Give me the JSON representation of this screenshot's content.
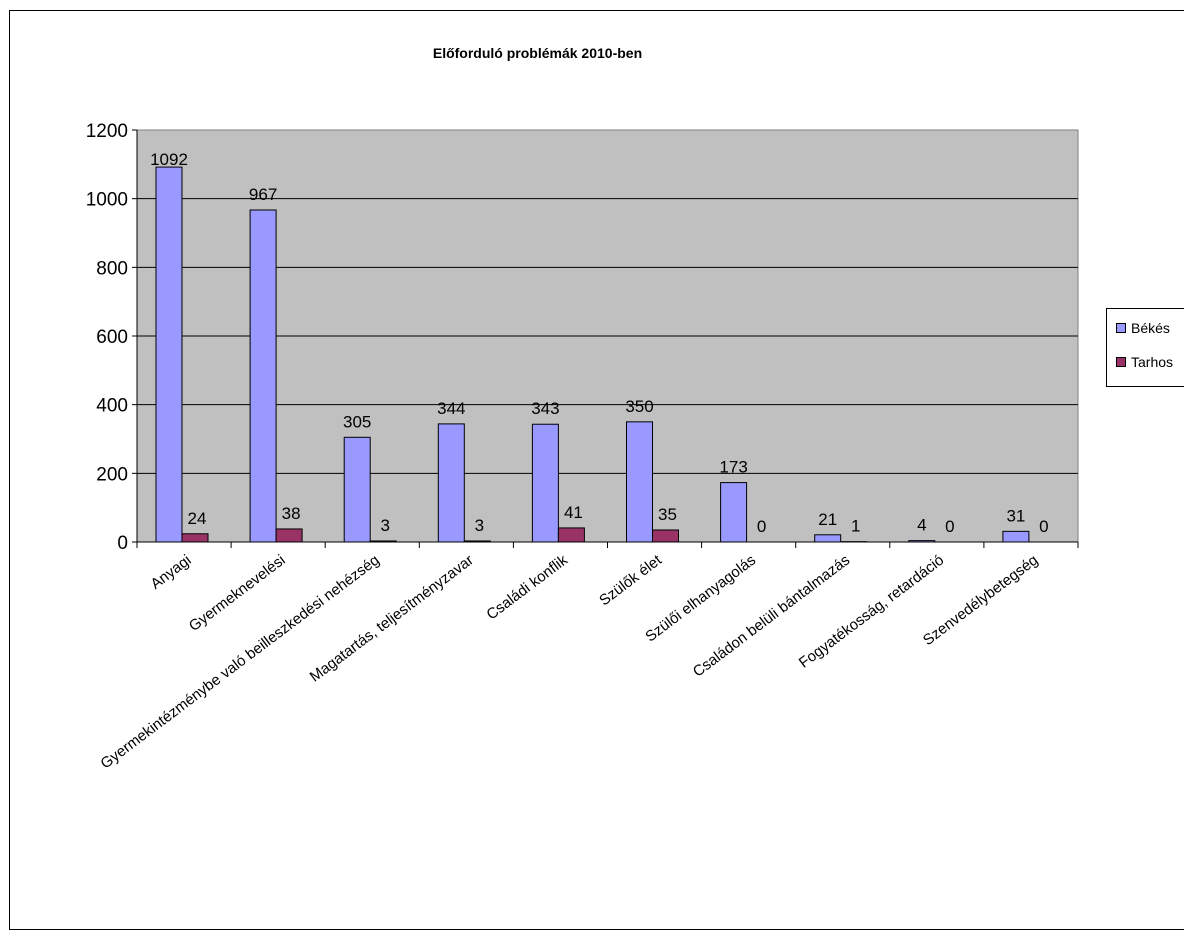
{
  "chart_data": {
    "type": "bar",
    "title": "Előforduló problémák 2010-ben",
    "categories": [
      "Anyagi",
      "Gyermeknevelési",
      "Gyermekintézménybe való beilleszkedési nehézség",
      "Magatartás, teljesítményzavar",
      "Családi konflik",
      "Szülők élet",
      "Szülői elhanyagolás",
      "Családon belüli bántalmazás",
      "Fogyatékosság, retardáció",
      "Szenvedélybetegség"
    ],
    "series": [
      {
        "name": "Békés",
        "color": "#9999ff",
        "values": [
          1092,
          967,
          305,
          344,
          343,
          350,
          173,
          21,
          4,
          31
        ]
      },
      {
        "name": "Tarhos",
        "color": "#993366",
        "values": [
          24,
          38,
          3,
          3,
          41,
          35,
          0,
          1,
          0,
          0
        ]
      }
    ],
    "y_ticks": [
      "0",
      "200",
      "400",
      "600",
      "800",
      "1000",
      "1200"
    ],
    "ylim": [
      0,
      1200
    ],
    "grid": true,
    "plot_background": "#c0c0c0",
    "legend_position": "right"
  }
}
